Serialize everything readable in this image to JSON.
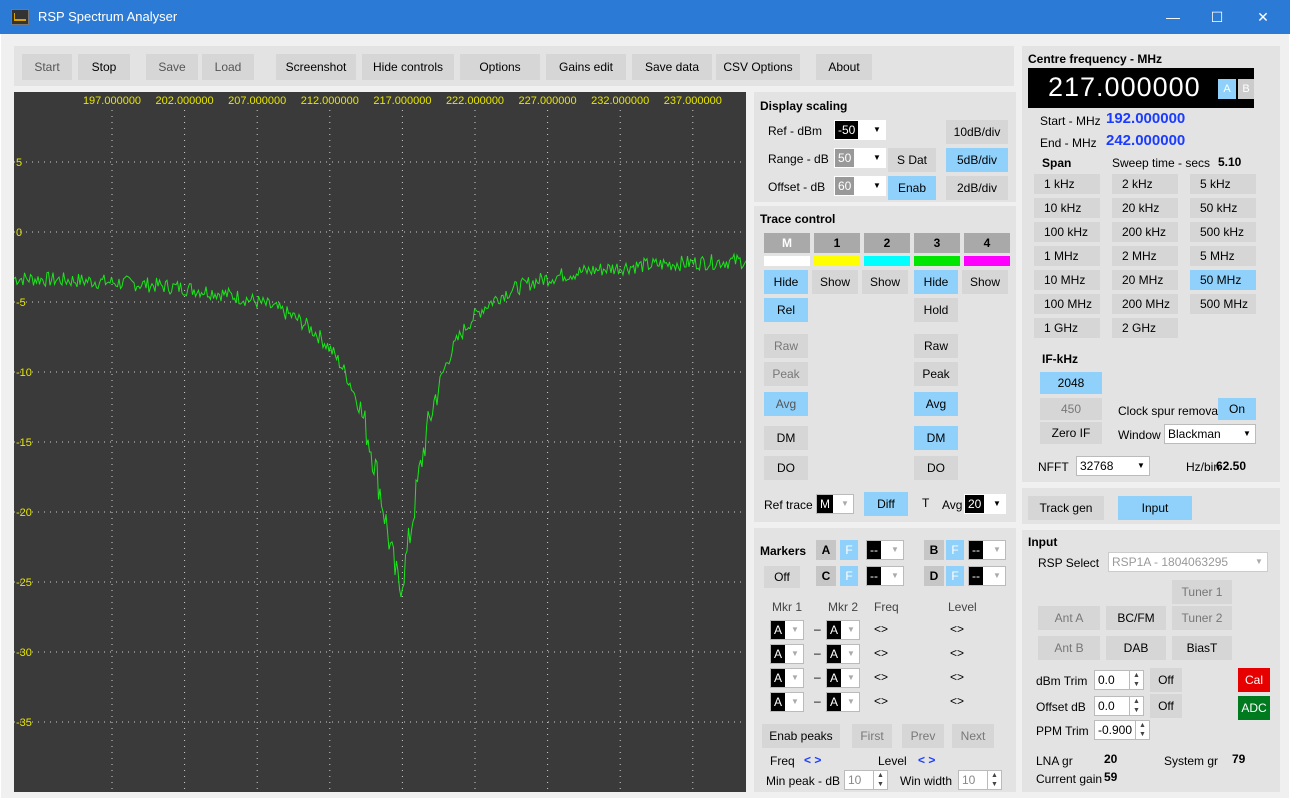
{
  "window": {
    "title": "RSP Spectrum Analyser",
    "min": "—",
    "max": "☐",
    "close": "✕"
  },
  "toolbar": {
    "start": "Start",
    "stop": "Stop",
    "save": "Save",
    "load": "Load",
    "screenshot": "Screenshot",
    "hide_controls": "Hide controls",
    "options": "Options",
    "gains_edit": "Gains edit",
    "save_data": "Save data",
    "csv_options": "CSV Options",
    "about": "About"
  },
  "plot": {
    "freq_labels": [
      "197.000000",
      "202.000000",
      "207.000000",
      "212.000000",
      "217.000000",
      "222.000000",
      "227.000000",
      "232.000000",
      "237.000000"
    ],
    "db_labels": [
      "5",
      "0",
      "-5",
      "-10",
      "-15",
      "-20",
      "-25",
      "-30",
      "-35"
    ],
    "trace_color": "#19e619",
    "label_color": "#e6e600",
    "bg_color": "#3a3a3a"
  },
  "display_scaling": {
    "title": "Display scaling",
    "ref_label": "Ref - dBm",
    "ref_value": "-50",
    "range_label": "Range - dB",
    "range_value": "50",
    "offset_label": "Offset - dB",
    "offset_value": "60",
    "sdat": "S Dat",
    "enab": "Enab",
    "d10": "10dB/div",
    "d5": "5dB/div",
    "d2": "2dB/div"
  },
  "trace_control": {
    "title": "Trace control",
    "headers": [
      "M",
      "1",
      "2",
      "3",
      "4"
    ],
    "colors": [
      "#ffffff",
      "#ffff00",
      "#00ffff",
      "#00e600",
      "#ff00ff"
    ],
    "show_hide": [
      "Hide",
      "Show",
      "Show",
      "Hide",
      "Show"
    ],
    "rel": "Rel",
    "hold": "Hold",
    "raw": "Raw",
    "peak": "Peak",
    "avg": "Avg",
    "dm": "DM",
    "do": "DO",
    "ref_trace_label": "Ref trace",
    "ref_trace_value": "M",
    "diff": "Diff",
    "t": "T",
    "avg_label": "Avg",
    "avg_value": "20"
  },
  "markers": {
    "title": "Markers",
    "a": "A",
    "b": "B",
    "c": "C",
    "d": "D",
    "f": "F",
    "off": "Off",
    "sel_val": "--",
    "mkr1": "Mkr 1",
    "mkr2": "Mkr 2",
    "freq": "Freq",
    "level": "Level",
    "row_val": "A",
    "dash": "–",
    "arrows": "<>",
    "enab_peaks": "Enab peaks",
    "first": "First",
    "prev": "Prev",
    "next": "Next",
    "freq_label": "Freq",
    "freq_arrows": "< >",
    "level_label": "Level",
    "level_arrows": "< >",
    "min_peak_label": "Min peak - dB",
    "min_peak_value": "10",
    "win_width_label": "Win width",
    "win_width_value": "10"
  },
  "centre": {
    "title": "Centre frequency - MHz",
    "value": "217.000000",
    "a": "A",
    "b": "B",
    "start_label": "Start - MHz",
    "start_value": "192.000000",
    "end_label": "End - MHz",
    "end_value": "242.000000",
    "span": "Span",
    "sweep_label": "Sweep time - secs",
    "sweep_value": "5.10",
    "spans": [
      "1 kHz",
      "2 kHz",
      "5 kHz",
      "10 kHz",
      "20 kHz",
      "50 kHz",
      "100 kHz",
      "200 kHz",
      "500 kHz",
      "1 MHz",
      "2 MHz",
      "5 MHz",
      "10 MHz",
      "20 MHz",
      "50 MHz",
      "100 MHz",
      "200 MHz",
      "500 MHz",
      "1 GHz",
      "2 GHz"
    ],
    "if_title": "IF-kHz",
    "if_2048": "2048",
    "if_450": "450",
    "zero_if": "Zero IF",
    "clock_spur": "Clock spur removal",
    "on": "On",
    "window_label": "Window",
    "window_value": "Blackman",
    "nfft_label": "NFFT",
    "nfft_value": "32768",
    "hzbin_label": "Hz/bin",
    "hzbin_value": "62.50"
  },
  "mode": {
    "track_gen": "Track gen",
    "input": "Input"
  },
  "input": {
    "title": "Input",
    "rsp_select": "RSP Select",
    "rsp_value": "RSP1A - 1804063295",
    "tuner1": "Tuner 1",
    "ant_a": "Ant A",
    "bcfm": "BC/FM",
    "tuner2": "Tuner 2",
    "ant_b": "Ant B",
    "dab": "DAB",
    "biast": "BiasT",
    "dbm_trim_label": "dBm Trim",
    "dbm_trim_value": "0.0",
    "off": "Off",
    "cal": "Cal",
    "offset_label": "Offset dB",
    "offset_value": "0.0",
    "adc": "ADC",
    "ppm_label": "PPM Trim",
    "ppm_value": "-0.900",
    "lna_label": "LNA gr",
    "lna_value": "20",
    "system_label": "System gr",
    "system_value": "79",
    "current_label": "Current gain",
    "current_value": "59"
  }
}
